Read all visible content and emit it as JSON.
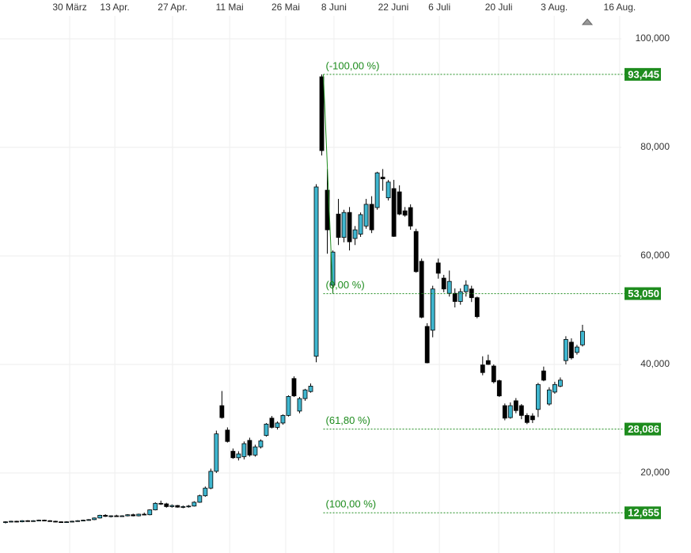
{
  "chart_data": {
    "type": "candlestick",
    "x": [
      1,
      2,
      3,
      4,
      5,
      6,
      7,
      8,
      9,
      10,
      11,
      12,
      13,
      14,
      15,
      16,
      17,
      18,
      19,
      20,
      21,
      22,
      23,
      24,
      25,
      26,
      27,
      28,
      29,
      30,
      31,
      32,
      33,
      34,
      35,
      36,
      37,
      38,
      39,
      40,
      41,
      42,
      43,
      44,
      45,
      46,
      47,
      48,
      49,
      50,
      51,
      52,
      53,
      54,
      55,
      56,
      57,
      58,
      59,
      60,
      61,
      62,
      63,
      64,
      65,
      66,
      67,
      68,
      69,
      70,
      71,
      72,
      73,
      74,
      75,
      76,
      77,
      78,
      79,
      80,
      81,
      82,
      83,
      84,
      85,
      86,
      87,
      88,
      89,
      90,
      91,
      92,
      93,
      94,
      95,
      96,
      97,
      98,
      99,
      100,
      101,
      102,
      103,
      104,
      105
    ],
    "open": [
      10900,
      11000,
      11100,
      11000,
      11200,
      11100,
      11200,
      11300,
      11200,
      11100,
      11000,
      10900,
      11000,
      11100,
      11200,
      11300,
      11400,
      11700,
      12200,
      12000,
      12100,
      12000,
      12100,
      12300,
      12100,
      12400,
      12300,
      13200,
      14400,
      14300,
      13800,
      14000,
      13700,
      13800,
      13900,
      14600,
      15800,
      17200,
      20300,
      32400,
      27900,
      24000,
      22800,
      23000,
      26000,
      23300,
      24800,
      26900,
      30100,
      28400,
      29200,
      30600,
      37400,
      31400,
      33700,
      35000,
      41500,
      93000,
      72100,
      54600,
      67700,
      63400,
      68000,
      63200,
      64000,
      65500,
      69500,
      68900,
      74500,
      70700,
      72400,
      71800,
      68300,
      68900,
      64500,
      59000,
      47000,
      46300,
      58700,
      55900,
      53100,
      53100,
      51600,
      53400,
      53900,
      52300,
      39900,
      40700,
      39700,
      37000,
      32400,
      30200,
      33300,
      32400,
      30600,
      30500,
      31700,
      38800,
      32700,
      34900,
      36000,
      40700,
      44100,
      42200,
      43600
    ],
    "high": [
      11100,
      11200,
      11200,
      11300,
      11300,
      11300,
      11400,
      11400,
      11300,
      11200,
      11100,
      11100,
      11200,
      11300,
      11400,
      11500,
      11800,
      12300,
      12400,
      12200,
      12300,
      12200,
      12400,
      12500,
      12500,
      12700,
      13300,
      14600,
      14900,
      14500,
      14200,
      14100,
      14000,
      14100,
      14800,
      16000,
      17500,
      20800,
      27800,
      35100,
      28400,
      24500,
      24000,
      25800,
      26500,
      25200,
      26200,
      29200,
      30500,
      29500,
      30800,
      34300,
      37800,
      34000,
      35500,
      36500,
      73200,
      93445,
      76000,
      61000,
      70500,
      68500,
      69000,
      65500,
      68000,
      70500,
      71000,
      75500,
      76000,
      74000,
      74000,
      73000,
      69000,
      69500,
      65000,
      59500,
      47600,
      54500,
      59500,
      56500,
      57300,
      54000,
      54000,
      55500,
      54500,
      52500,
      41500,
      41800,
      40000,
      37200,
      32800,
      33000,
      33800,
      32700,
      31000,
      31000,
      36600,
      39600,
      35800,
      36800,
      37600,
      45200,
      44800,
      43600,
      47300
    ],
    "low": [
      10700,
      10900,
      10900,
      10900,
      11000,
      11000,
      11100,
      11100,
      11000,
      10900,
      10800,
      10800,
      10900,
      11000,
      11100,
      11200,
      11300,
      11600,
      11900,
      11800,
      11900,
      11900,
      12000,
      12000,
      12000,
      12200,
      12200,
      13100,
      14100,
      13600,
      13600,
      13600,
      13500,
      13600,
      13800,
      14500,
      15600,
      17000,
      20000,
      30000,
      25600,
      22600,
      22300,
      22500,
      23000,
      23000,
      24500,
      26700,
      28200,
      28000,
      28900,
      30400,
      34000,
      31000,
      33300,
      34800,
      40400,
      78500,
      60400,
      53050,
      62000,
      62500,
      61000,
      62000,
      63500,
      65000,
      64200,
      68500,
      72000,
      70200,
      63500,
      67500,
      67200,
      64800,
      56900,
      48500,
      40200,
      45000,
      55800,
      53300,
      52500,
      50500,
      51000,
      52500,
      51500,
      48500,
      38000,
      39900,
      36500,
      34000,
      29700,
      30000,
      31000,
      29900,
      29000,
      29200,
      30300,
      36900,
      32400,
      34600,
      35800,
      40000,
      40900,
      41800,
      43300
    ],
    "close": [
      11000,
      11100,
      11000,
      11200,
      11100,
      11200,
      11300,
      11200,
      11100,
      11000,
      10900,
      11000,
      11100,
      11200,
      11300,
      11400,
      11700,
      12200,
      12000,
      12100,
      12000,
      12100,
      12300,
      12100,
      12400,
      12300,
      13200,
      14400,
      14300,
      13800,
      14000,
      13700,
      13800,
      13900,
      14600,
      15800,
      17200,
      20300,
      27200,
      30200,
      25800,
      22800,
      23500,
      25400,
      23300,
      24800,
      25900,
      29000,
      28400,
      29200,
      30600,
      34100,
      34200,
      33700,
      35300,
      36000,
      72700,
      79400,
      64800,
      60700,
      63400,
      68000,
      62600,
      64800,
      67600,
      69500,
      64800,
      75300,
      74200,
      73600,
      63600,
      67700,
      67500,
      65500,
      57100,
      48700,
      40300,
      53900,
      56800,
      53900,
      55300,
      51600,
      53400,
      54600,
      52300,
      48800,
      38500,
      40000,
      36800,
      34200,
      30100,
      32400,
      31500,
      30600,
      29300,
      29800,
      36300,
      37100,
      35300,
      36300,
      37100,
      44600,
      41200,
      43200,
      46100
    ],
    "up_color": "#3fb6cf",
    "down_color": "#000000",
    "xlim": [
      0,
      112
    ],
    "ylim": [
      5250,
      107150
    ],
    "xticks": [
      {
        "value": 12.56,
        "label": "30 März"
      },
      {
        "value": 20.7,
        "label": "13 Apr."
      },
      {
        "value": 31.1,
        "label": "27 Apr."
      },
      {
        "value": 41.4,
        "label": "11 Mai"
      },
      {
        "value": 51.5,
        "label": "26 Mai"
      },
      {
        "value": 60.2,
        "label": "8 Juni"
      },
      {
        "value": 70.9,
        "label": "22 Juni"
      },
      {
        "value": 79.2,
        "label": "6 Juli"
      },
      {
        "value": 89.9,
        "label": "20 Juli"
      },
      {
        "value": 99.9,
        "label": "3 Aug."
      },
      {
        "value": 111.7,
        "label": "16 Aug."
      }
    ],
    "yticks": [
      {
        "value": 100000,
        "label": "100,000"
      },
      {
        "value": 80000,
        "label": "80,000"
      },
      {
        "value": 60000,
        "label": "60,000"
      },
      {
        "value": 40000,
        "label": "40,000"
      },
      {
        "value": 20000,
        "label": "20,000"
      }
    ],
    "grid": true,
    "fib_color": "#1e8c1e",
    "fib_levels": [
      {
        "value": 93445,
        "label": "93,445",
        "percent": "(-100,00 %)"
      },
      {
        "value": 53050,
        "label": "53,050",
        "percent": "(0,00 %)"
      },
      {
        "value": 28086,
        "label": "28,086",
        "percent": "(61,80 %)"
      },
      {
        "value": 12655,
        "label": "12,655",
        "percent": "(100,00 %)"
      }
    ]
  }
}
